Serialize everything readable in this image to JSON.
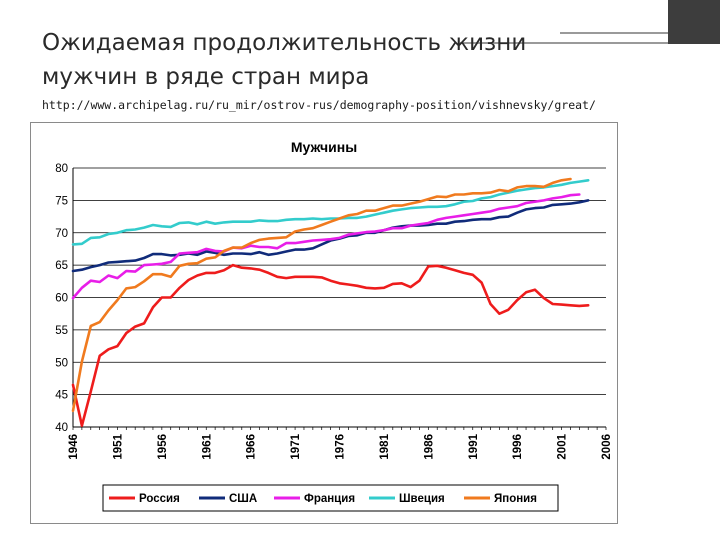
{
  "slide": {
    "title_line1": "Ожидаемая продолжительность жизни",
    "title_line2": "мужчин в  ряде стран мира",
    "url": "http://www.archipelag.ru/ru_mir/ostrov-rus/demography-position/vishnevsky/great/"
  },
  "chart_data": {
    "type": "line",
    "title": "Мужчины",
    "xlabel": "",
    "ylabel": "",
    "xlim": [
      1946,
      2006
    ],
    "ylim": [
      40,
      80
    ],
    "grid": true,
    "legend": "bottom",
    "x_ticks": [
      "1946",
      "1951",
      "1956",
      "1961",
      "1966",
      "1971",
      "1976",
      "1981",
      "1986",
      "1991",
      "1996",
      "2001",
      "2006"
    ],
    "y_ticks": [
      "40",
      "45",
      "50",
      "55",
      "60",
      "65",
      "70",
      "75",
      "80"
    ],
    "series": [
      {
        "name": "Россия",
        "color": "#ee1c1c",
        "x": [
          1946,
          1947,
          1948,
          1949,
          1950,
          1951,
          1952,
          1953,
          1954,
          1955,
          1956,
          1957,
          1958,
          1959,
          1960,
          1961,
          1962,
          1963,
          1964,
          1965,
          1966,
          1967,
          1968,
          1969,
          1970,
          1971,
          1972,
          1973,
          1974,
          1975,
          1976,
          1977,
          1978,
          1979,
          1980,
          1981,
          1982,
          1983,
          1984,
          1985,
          1986,
          1987,
          1988,
          1989,
          1990,
          1991,
          1992,
          1993,
          1994,
          1995,
          1996,
          1997,
          1998,
          1999,
          2000,
          2001,
          2002,
          2003,
          2004
        ],
        "y": [
          46.5,
          40.2,
          45.5,
          51,
          52,
          52.5,
          54.5,
          55.5,
          56,
          58.5,
          60,
          60,
          61.5,
          62.7,
          63.4,
          63.8,
          63.8,
          64.2,
          65,
          64.6,
          64.5,
          64.3,
          63.8,
          63.2,
          63,
          63.2,
          63.2,
          63.2,
          63.1,
          62.6,
          62.2,
          62,
          61.8,
          61.5,
          61.4,
          61.5,
          62.1,
          62.2,
          61.6,
          62.6,
          64.8,
          64.9,
          64.6,
          64.2,
          63.8,
          63.5,
          62.3,
          59,
          57.5,
          58.1,
          59.6,
          60.8,
          61.2,
          59.9,
          59,
          58.9,
          58.8,
          58.7,
          58.8
        ]
      },
      {
        "name": "США",
        "color": "#102b7a",
        "x": [
          1946,
          1947,
          1948,
          1949,
          1950,
          1951,
          1952,
          1953,
          1954,
          1955,
          1956,
          1957,
          1958,
          1959,
          1960,
          1961,
          1962,
          1963,
          1964,
          1965,
          1966,
          1967,
          1968,
          1969,
          1970,
          1971,
          1972,
          1973,
          1974,
          1975,
          1976,
          1977,
          1978,
          1979,
          1980,
          1981,
          1982,
          1983,
          1984,
          1985,
          1986,
          1987,
          1988,
          1989,
          1990,
          1991,
          1992,
          1993,
          1994,
          1995,
          1996,
          1997,
          1998,
          1999,
          2000,
          2001,
          2002,
          2003,
          2004
        ],
        "y": [
          64.1,
          64.3,
          64.7,
          65,
          65.4,
          65.5,
          65.6,
          65.7,
          66.1,
          66.7,
          66.7,
          66.5,
          66.6,
          66.8,
          66.6,
          67.1,
          66.9,
          66.6,
          66.8,
          66.8,
          66.7,
          67,
          66.6,
          66.8,
          67.1,
          67.4,
          67.4,
          67.6,
          68.2,
          68.8,
          69.1,
          69.5,
          69.6,
          70,
          70,
          70.4,
          70.8,
          71,
          71.1,
          71.1,
          71.2,
          71.4,
          71.4,
          71.7,
          71.8,
          72,
          72.1,
          72.1,
          72.4,
          72.5,
          73.1,
          73.6,
          73.8,
          73.9,
          74.3,
          74.4,
          74.5,
          74.7,
          75
        ]
      },
      {
        "name": "Франция",
        "color": "#e81ee8",
        "x": [
          1946,
          1947,
          1948,
          1949,
          1950,
          1951,
          1952,
          1953,
          1954,
          1955,
          1956,
          1957,
          1958,
          1959,
          1960,
          1961,
          1962,
          1963,
          1964,
          1965,
          1966,
          1967,
          1968,
          1969,
          1970,
          1971,
          1972,
          1973,
          1974,
          1975,
          1976,
          1977,
          1978,
          1979,
          1980,
          1981,
          1982,
          1983,
          1984,
          1985,
          1986,
          1987,
          1988,
          1989,
          1990,
          1991,
          1992,
          1993,
          1994,
          1995,
          1996,
          1997,
          1998,
          1999,
          2000,
          2001,
          2002,
          2003
        ],
        "y": [
          59.9,
          61.5,
          62.6,
          62.4,
          63.4,
          63,
          64.1,
          64,
          65,
          65.1,
          65.2,
          65.5,
          66.8,
          66.9,
          67,
          67.5,
          67.2,
          67.1,
          67.7,
          67.6,
          68,
          67.8,
          67.8,
          67.6,
          68.4,
          68.4,
          68.6,
          68.8,
          68.9,
          69,
          69.2,
          69.7,
          69.9,
          70.1,
          70.2,
          70.4,
          70.7,
          70.7,
          71.1,
          71.3,
          71.5,
          72,
          72.3,
          72.5,
          72.7,
          72.9,
          73.1,
          73.3,
          73.7,
          73.9,
          74.1,
          74.6,
          74.8,
          75,
          75.3,
          75.5,
          75.8,
          75.9
        ]
      },
      {
        "name": "Швеция",
        "color": "#33cccc",
        "x": [
          1946,
          1947,
          1948,
          1949,
          1950,
          1951,
          1952,
          1953,
          1954,
          1955,
          1956,
          1957,
          1958,
          1959,
          1960,
          1961,
          1962,
          1963,
          1964,
          1965,
          1966,
          1967,
          1968,
          1969,
          1970,
          1971,
          1972,
          1973,
          1974,
          1975,
          1976,
          1977,
          1978,
          1979,
          1980,
          1981,
          1982,
          1983,
          1984,
          1985,
          1986,
          1987,
          1988,
          1989,
          1990,
          1991,
          1992,
          1993,
          1994,
          1995,
          1996,
          1997,
          1998,
          1999,
          2000,
          2001,
          2002,
          2003,
          2004
        ],
        "y": [
          68.2,
          68.3,
          69.2,
          69.3,
          69.8,
          70,
          70.4,
          70.5,
          70.8,
          71.2,
          71,
          70.9,
          71.5,
          71.6,
          71.3,
          71.7,
          71.4,
          71.6,
          71.7,
          71.7,
          71.7,
          71.9,
          71.8,
          71.8,
          72,
          72.1,
          72.1,
          72.2,
          72.1,
          72.2,
          72.2,
          72.3,
          72.3,
          72.5,
          72.8,
          73.1,
          73.4,
          73.6,
          73.8,
          73.9,
          74,
          74,
          74.1,
          74.4,
          74.8,
          74.9,
          75.3,
          75.5,
          75.9,
          76.2,
          76.5,
          76.7,
          76.9,
          77,
          77.2,
          77.4,
          77.7,
          77.9,
          78.1
        ]
      },
      {
        "name": "Япония",
        "color": "#f07a1e",
        "x": [
          1946,
          1947,
          1948,
          1949,
          1950,
          1951,
          1952,
          1953,
          1954,
          1955,
          1956,
          1957,
          1958,
          1959,
          1960,
          1961,
          1962,
          1963,
          1964,
          1965,
          1966,
          1967,
          1968,
          1969,
          1970,
          1971,
          1972,
          1973,
          1974,
          1975,
          1976,
          1977,
          1978,
          1979,
          1980,
          1981,
          1982,
          1983,
          1984,
          1985,
          1986,
          1987,
          1988,
          1989,
          1990,
          1991,
          1992,
          1993,
          1994,
          1995,
          1996,
          1997,
          1998,
          1999,
          2000,
          2001,
          2002
        ],
        "y": [
          42.5,
          50.1,
          55.6,
          56.2,
          58,
          59.6,
          61.4,
          61.6,
          62.5,
          63.6,
          63.6,
          63.2,
          64.9,
          65.2,
          65.3,
          66,
          66.2,
          67.2,
          67.7,
          67.7,
          68.4,
          68.9,
          69.1,
          69.2,
          69.3,
          70.2,
          70.5,
          70.7,
          71.2,
          71.7,
          72.2,
          72.7,
          72.9,
          73.4,
          73.4,
          73.8,
          74.2,
          74.2,
          74.5,
          74.8,
          75.2,
          75.6,
          75.5,
          75.9,
          75.9,
          76.1,
          76.1,
          76.2,
          76.6,
          76.4,
          77,
          77.2,
          77.2,
          77.1,
          77.7,
          78.1,
          78.3
        ]
      }
    ]
  }
}
